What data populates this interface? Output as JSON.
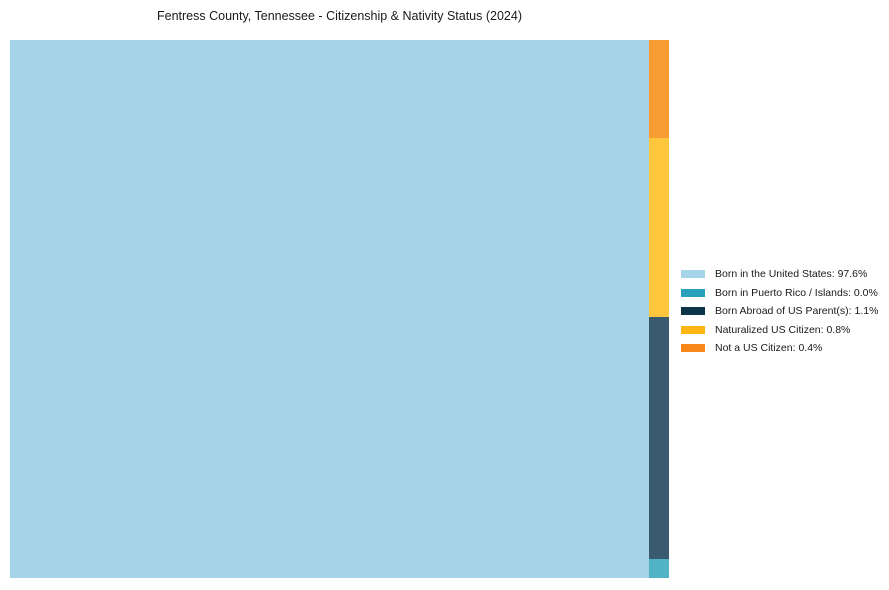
{
  "page": {
    "title": "Fentress County, Tennessee - Citizenship & Nativity Status (2024)"
  },
  "colors": {
    "background": "#ffffff",
    "text": "#1a1a1a",
    "born_us": {
      "fill": "#A5D3E8",
      "legend": "#A5D3E8"
    },
    "puerto_rico": {
      "fill": "#51B3C6",
      "legend": "#2AA0BC"
    },
    "born_abroad": {
      "fill": "#3A5A70",
      "legend": "#0D3349"
    },
    "naturalized": {
      "fill": "#FDC63C",
      "legend": "#FFB612"
    },
    "not_citizen": {
      "fill": "#F99C31",
      "legend": "#F8881C"
    }
  },
  "legend": {
    "position": "right",
    "items": [
      {
        "text": "Born in the United States: 97.6%"
      },
      {
        "text": "Born in Puerto Rico / Islands: 0.0%"
      },
      {
        "text": "Born Abroad of US Parent(s): 1.1%"
      },
      {
        "text": "Naturalized US Citizen: 0.8%"
      },
      {
        "text": "Not a US Citizen: 0.4%"
      }
    ]
  },
  "chart_data": {
    "type": "treemap",
    "title": "Fentress County, Tennessee - Citizenship & Nativity Status (2024)",
    "unit": "percent",
    "segments": [
      {
        "label": "Born in the United States",
        "value": 97.6,
        "color": "#A5D3E8"
      },
      {
        "label": "Born in Puerto Rico / Islands",
        "value": 0.0,
        "color": "#2AA0BC"
      },
      {
        "label": "Born Abroad of US Parent(s)",
        "value": 1.1,
        "color": "#0D3349"
      },
      {
        "label": "Naturalized US Citizen",
        "value": 0.8,
        "color": "#FFB612"
      },
      {
        "label": "Not a US Citizen",
        "value": 0.4,
        "color": "#F8881C"
      }
    ],
    "layout_hint": {
      "main_block": "Born in the United States (large left block)",
      "right_column_top_to_bottom": [
        "Not a US Citizen",
        "Naturalized US Citizen",
        "Born Abroad of US Parent(s)",
        "Born in Puerto Rico / Islands"
      ],
      "legend_position": "right-center",
      "axes": "none",
      "grid": false
    }
  }
}
